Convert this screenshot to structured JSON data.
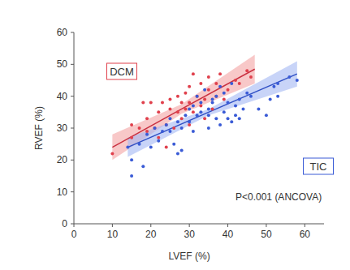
{
  "chart_data": {
    "type": "scatter",
    "x_label": "LVEF (%)",
    "y_label": "RVEF (%)",
    "annotation": "P<0.001 (ANCOVA)",
    "xlim": [
      0,
      65
    ],
    "ylim": [
      0,
      60
    ],
    "xticks": [
      0,
      10,
      20,
      30,
      40,
      50,
      60
    ],
    "yticks": [
      0,
      10,
      20,
      30,
      40,
      50,
      60
    ],
    "grid": false,
    "series": [
      {
        "name": "DCM",
        "color": "#e0404c",
        "marker": "circle",
        "x": [
          10,
          15,
          15,
          17,
          18,
          19,
          19,
          20,
          21,
          22,
          22,
          23,
          24,
          24,
          25,
          25,
          26,
          27,
          27,
          28,
          28,
          29,
          29,
          30,
          30,
          30,
          31,
          31,
          32,
          33,
          33,
          34,
          34,
          35,
          35,
          36,
          37,
          37,
          38,
          39,
          40,
          42,
          43,
          45,
          46
        ],
        "values": [
          22,
          31,
          27,
          30,
          38,
          29,
          33,
          38,
          30,
          27,
          35,
          38,
          31,
          24,
          36,
          39,
          30,
          35,
          40,
          33,
          38,
          36,
          41,
          31,
          38,
          43,
          35,
          47,
          40,
          37,
          44,
          33,
          39,
          42,
          46,
          36,
          40,
          44,
          47,
          39,
          42,
          45,
          44,
          48,
          46
        ],
        "fit": {
          "x": [
            10,
            28,
            47
          ],
          "values": [
            24,
            36,
            48.5
          ],
          "lower": [
            20,
            34.5,
            44
          ],
          "upper": [
            28,
            37.5,
            53
          ]
        }
      },
      {
        "name": "TIC",
        "color": "#3a5bd6",
        "marker": "circle",
        "x": [
          14,
          15,
          15,
          17,
          18,
          19,
          20,
          21,
          22,
          23,
          24,
          25,
          25,
          26,
          27,
          27,
          28,
          28,
          29,
          30,
          30,
          31,
          31,
          32,
          32,
          33,
          33,
          34,
          35,
          35,
          36,
          36,
          37,
          37,
          38,
          39,
          39,
          40,
          40,
          41,
          42,
          42,
          43,
          43,
          44,
          45,
          46,
          48,
          50,
          51,
          52,
          53,
          53,
          56,
          58,
          35,
          38,
          41
        ],
        "values": [
          24,
          15,
          20,
          25,
          18,
          28,
          24,
          30,
          26,
          29,
          31,
          29,
          33,
          25,
          22,
          32,
          23,
          30,
          34,
          32,
          36,
          37,
          29,
          34,
          40,
          35,
          38,
          42,
          36,
          34,
          39,
          38,
          33,
          40,
          43,
          41,
          35,
          33,
          38,
          44,
          34,
          37,
          33,
          39,
          36,
          41,
          40,
          36,
          34,
          39,
          43,
          44,
          40,
          46,
          45,
          30,
          31,
          32
        ],
        "fit": {
          "x": [
            14,
            35,
            58
          ],
          "values": [
            24,
            35,
            47
          ],
          "lower": [
            21,
            34,
            43
          ],
          "upper": [
            27,
            36,
            51
          ]
        }
      }
    ]
  }
}
